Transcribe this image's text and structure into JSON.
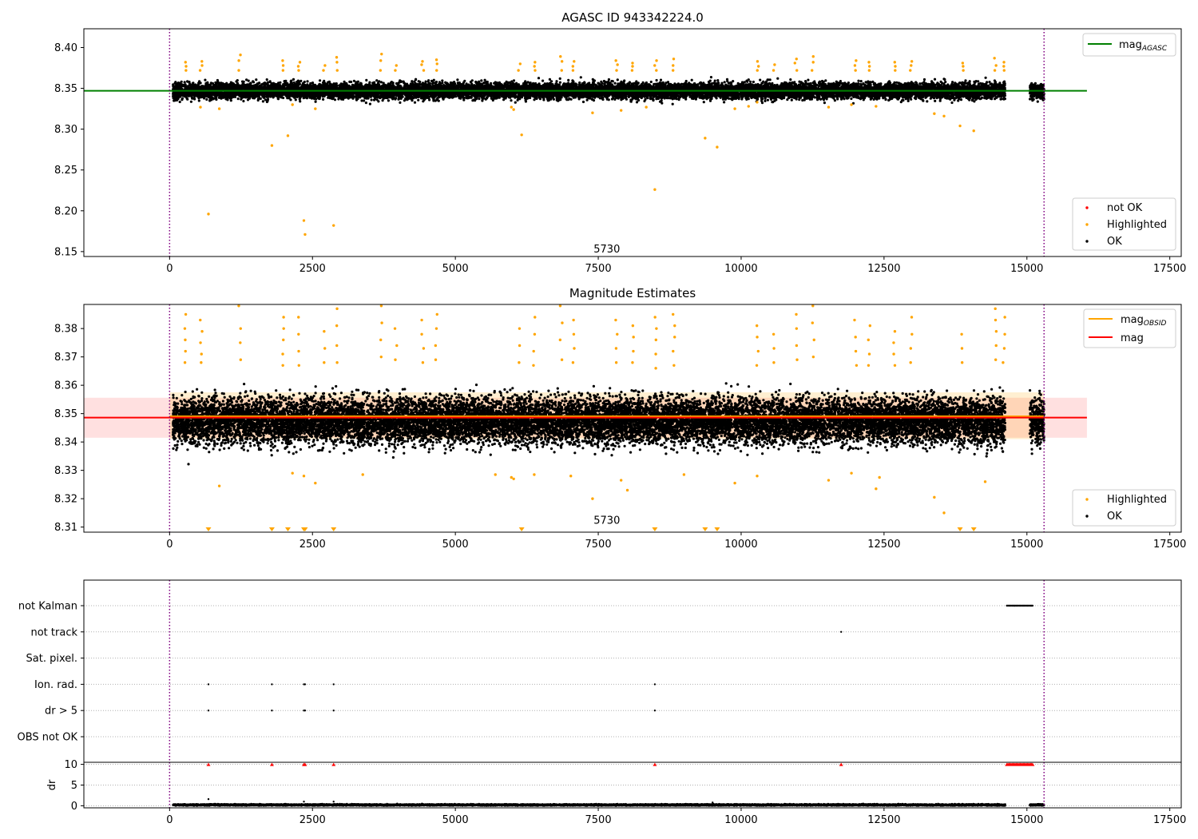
{
  "chart_data": [
    {
      "type": "scatter",
      "title": "AGASC ID 943342224.0",
      "xlim": [
        -1500,
        17700
      ],
      "ylim": [
        8.144,
        8.423
      ],
      "xticks": [
        0,
        2500,
        5000,
        7500,
        10000,
        12500,
        15000,
        17500
      ],
      "yticks": [
        8.15,
        8.2,
        8.25,
        8.3,
        8.35,
        8.4
      ],
      "ytick_labels": [
        "8.15",
        "8.20",
        "8.25",
        "8.30",
        "8.35",
        "8.40"
      ],
      "vlines": [
        0,
        15300
      ],
      "vline_color": "#800080",
      "annotation": {
        "text": "5730",
        "x": 7650,
        "y": 8.151
      },
      "hline": {
        "name": "mag_AGASC",
        "value": 8.347,
        "x_range": [
          -1500,
          16050
        ],
        "color": "#008000"
      },
      "ok_band": {
        "center": 8.347,
        "spread": 0.008
      },
      "ok_segments": [
        [
          60,
          14620
        ],
        [
          15050,
          15300
        ]
      ],
      "highlighted_clusters": [
        {
          "x": 280,
          "values": [
            8.372,
            8.377,
            8.382
          ]
        },
        {
          "x": 550,
          "values": [
            8.372,
            8.378,
            8.383
          ]
        },
        {
          "x": 1230,
          "values": [
            8.372,
            8.384,
            8.391
          ]
        },
        {
          "x": 1980,
          "values": [
            8.372,
            8.378,
            8.384
          ]
        },
        {
          "x": 2260,
          "values": [
            8.372,
            8.377,
            8.382
          ]
        },
        {
          "x": 2700,
          "values": [
            8.372,
            8.378
          ]
        },
        {
          "x": 2940,
          "values": [
            8.372,
            8.382,
            8.388
          ]
        },
        {
          "x": 3700,
          "values": [
            8.372,
            8.384,
            8.392
          ]
        },
        {
          "x": 3960,
          "values": [
            8.372,
            8.378
          ]
        },
        {
          "x": 4430,
          "values": [
            8.372,
            8.379,
            8.383
          ]
        },
        {
          "x": 4670,
          "values": [
            8.372,
            8.38,
            8.385
          ]
        },
        {
          "x": 6120,
          "values": [
            8.372,
            8.38
          ]
        },
        {
          "x": 6380,
          "values": [
            8.372,
            8.377,
            8.382
          ]
        },
        {
          "x": 6850,
          "values": [
            8.372,
            8.383,
            8.389
          ]
        },
        {
          "x": 7070,
          "values": [
            8.372,
            8.377,
            8.383
          ]
        },
        {
          "x": 7820,
          "values": [
            8.372,
            8.379,
            8.384
          ]
        },
        {
          "x": 8100,
          "values": [
            8.372,
            8.377,
            8.381
          ]
        },
        {
          "x": 8500,
          "values": [
            8.372,
            8.378,
            8.384
          ]
        },
        {
          "x": 8820,
          "values": [
            8.372,
            8.378,
            8.386
          ]
        },
        {
          "x": 10290,
          "values": [
            8.372,
            8.377,
            8.383
          ]
        },
        {
          "x": 10580,
          "values": [
            8.372,
            8.379
          ]
        },
        {
          "x": 10960,
          "values": [
            8.372,
            8.381,
            8.386
          ]
        },
        {
          "x": 11260,
          "values": [
            8.372,
            8.382,
            8.389
          ]
        },
        {
          "x": 12000,
          "values": [
            8.372,
            8.378,
            8.384
          ]
        },
        {
          "x": 12240,
          "values": [
            8.372,
            8.377,
            8.382
          ]
        },
        {
          "x": 12680,
          "values": [
            8.372,
            8.377,
            8.382
          ]
        },
        {
          "x": 12970,
          "values": [
            8.372,
            8.378,
            8.383
          ]
        },
        {
          "x": 13870,
          "values": [
            8.372,
            8.377,
            8.381
          ]
        },
        {
          "x": 14450,
          "values": [
            8.372,
            8.378,
            8.387
          ]
        },
        {
          "x": 14600,
          "values": [
            8.372,
            8.377,
            8.382
          ]
        }
      ],
      "highlighted_low": [
        [
          680,
          8.196
        ],
        [
          1790,
          8.28
        ],
        [
          2070,
          8.292
        ],
        [
          2350,
          8.188
        ],
        [
          2370,
          8.171
        ],
        [
          2870,
          8.182
        ],
        [
          6160,
          8.293
        ],
        [
          8490,
          8.226
        ],
        [
          9370,
          8.289
        ],
        [
          9580,
          8.278
        ],
        [
          13830,
          8.304
        ],
        [
          14070,
          8.298
        ],
        [
          13380,
          8.319
        ],
        [
          13550,
          8.316
        ],
        [
          7400,
          8.32
        ],
        [
          540,
          8.327
        ],
        [
          870,
          8.325
        ],
        [
          2150,
          8.33
        ],
        [
          2550,
          8.325
        ],
        [
          5980,
          8.327
        ],
        [
          6020,
          8.324
        ],
        [
          7900,
          8.323
        ],
        [
          9890,
          8.325
        ],
        [
          10130,
          8.328
        ],
        [
          10280,
          8.333
        ],
        [
          11530,
          8.327
        ],
        [
          11930,
          8.33
        ],
        [
          12360,
          8.328
        ],
        [
          8340,
          8.327
        ]
      ],
      "legend_markers": [
        {
          "label": "not OK",
          "color": "#ff0000"
        },
        {
          "label": "Highlighted",
          "color": "#ffa500"
        },
        {
          "label": "OK",
          "color": "#000000"
        }
      ],
      "legend_lines": [
        {
          "label": "mag",
          "sub": "AGASC",
          "color": "#008000"
        }
      ]
    },
    {
      "type": "scatter",
      "title": "Magnitude Estimates",
      "xlim": [
        -1500,
        17700
      ],
      "ylim": [
        8.3082,
        8.3885
      ],
      "xticks": [
        0,
        2500,
        5000,
        7500,
        10000,
        12500,
        15000,
        17500
      ],
      "yticks": [
        8.31,
        8.32,
        8.33,
        8.34,
        8.35,
        8.36,
        8.37,
        8.38
      ],
      "ytick_labels": [
        "8.31",
        "8.32",
        "8.33",
        "8.34",
        "8.35",
        "8.36",
        "8.37",
        "8.38"
      ],
      "vlines": [
        0,
        15300
      ],
      "vline_color": "#800080",
      "annotation": {
        "text": "5730",
        "x": 7650,
        "y": 8.3106
      },
      "mag": {
        "value": 8.3486,
        "band": [
          8.3415,
          8.3556
        ],
        "x_range": [
          -1500,
          16050
        ],
        "color": "#ff0000"
      },
      "mag_obsid": {
        "value": 8.349,
        "band": [
          8.341,
          8.3575
        ],
        "x_range": [
          0,
          15300
        ],
        "color": "#ffa500"
      },
      "ok_band": {
        "center": 8.3475,
        "spread": 0.0068
      },
      "ok_segments": [
        [
          60,
          14620
        ],
        [
          15050,
          15300
        ]
      ],
      "highlighted_clusters": [
        {
          "x": 280,
          "values": [
            8.368,
            8.372,
            8.376,
            8.38,
            8.385
          ]
        },
        {
          "x": 550,
          "values": [
            8.368,
            8.371,
            8.375,
            8.379,
            8.383
          ]
        },
        {
          "x": 1230,
          "values": [
            8.369,
            8.375,
            8.38,
            8.388
          ]
        },
        {
          "x": 1980,
          "values": [
            8.367,
            8.371,
            8.376,
            8.38,
            8.384
          ]
        },
        {
          "x": 2260,
          "values": [
            8.367,
            8.372,
            8.378,
            8.384
          ]
        },
        {
          "x": 2700,
          "values": [
            8.368,
            8.373,
            8.379
          ]
        },
        {
          "x": 2940,
          "values": [
            8.368,
            8.374,
            8.381,
            8.387
          ]
        },
        {
          "x": 3700,
          "values": [
            8.37,
            8.376,
            8.382,
            8.388
          ]
        },
        {
          "x": 3960,
          "values": [
            8.369,
            8.374,
            8.38
          ]
        },
        {
          "x": 4430,
          "values": [
            8.368,
            8.373,
            8.378,
            8.383
          ]
        },
        {
          "x": 4670,
          "values": [
            8.369,
            8.374,
            8.38,
            8.385
          ]
        },
        {
          "x": 6120,
          "values": [
            8.368,
            8.374,
            8.38
          ]
        },
        {
          "x": 6380,
          "values": [
            8.367,
            8.372,
            8.378,
            8.384
          ]
        },
        {
          "x": 6850,
          "values": [
            8.369,
            8.376,
            8.382,
            8.388
          ]
        },
        {
          "x": 7070,
          "values": [
            8.368,
            8.373,
            8.378,
            8.383
          ]
        },
        {
          "x": 7820,
          "values": [
            8.368,
            8.373,
            8.378,
            8.383
          ]
        },
        {
          "x": 8100,
          "values": [
            8.368,
            8.372,
            8.377,
            8.381
          ]
        },
        {
          "x": 8500,
          "values": [
            8.366,
            8.371,
            8.376,
            8.38,
            8.384
          ]
        },
        {
          "x": 8820,
          "values": [
            8.367,
            8.372,
            8.377,
            8.381,
            8.385
          ]
        },
        {
          "x": 10290,
          "values": [
            8.367,
            8.372,
            8.377,
            8.381
          ]
        },
        {
          "x": 10580,
          "values": [
            8.368,
            8.373,
            8.378
          ]
        },
        {
          "x": 10960,
          "values": [
            8.369,
            8.374,
            8.38,
            8.385
          ]
        },
        {
          "x": 11260,
          "values": [
            8.37,
            8.376,
            8.382,
            8.388
          ]
        },
        {
          "x": 12000,
          "values": [
            8.367,
            8.372,
            8.377,
            8.383
          ]
        },
        {
          "x": 12240,
          "values": [
            8.367,
            8.371,
            8.376,
            8.381
          ]
        },
        {
          "x": 12680,
          "values": [
            8.367,
            8.371,
            8.375,
            8.379
          ]
        },
        {
          "x": 12970,
          "values": [
            8.368,
            8.373,
            8.378,
            8.384
          ]
        },
        {
          "x": 13870,
          "values": [
            8.368,
            8.373,
            8.378
          ]
        },
        {
          "x": 14450,
          "values": [
            8.369,
            8.374,
            8.379,
            8.383,
            8.387
          ]
        },
        {
          "x": 14600,
          "values": [
            8.368,
            8.373,
            8.378,
            8.384
          ]
        }
      ],
      "highlighted_low": [
        [
          870,
          8.3245
        ],
        [
          2150,
          8.329
        ],
        [
          2550,
          8.3255
        ],
        [
          2350,
          8.328
        ],
        [
          5700,
          8.3285
        ],
        [
          5980,
          8.3275
        ],
        [
          6020,
          8.327
        ],
        [
          6380,
          8.3285
        ],
        [
          7400,
          8.32
        ],
        [
          7900,
          8.3265
        ],
        [
          8010,
          8.323
        ],
        [
          7020,
          8.328
        ],
        [
          9890,
          8.3255
        ],
        [
          10280,
          8.328
        ],
        [
          11530,
          8.3265
        ],
        [
          11930,
          8.329
        ],
        [
          12360,
          8.3235
        ],
        [
          12420,
          8.3275
        ],
        [
          13380,
          8.3205
        ],
        [
          13550,
          8.315
        ],
        [
          14270,
          8.326
        ],
        [
          9000,
          8.3285
        ],
        [
          3380,
          8.3285
        ]
      ],
      "below_axis_markers": [
        680,
        1790,
        2070,
        2350,
        2370,
        2870,
        6160,
        8490,
        9370,
        9580,
        13830,
        14070
      ],
      "legend_markers": [
        {
          "label": "Highlighted",
          "color": "#ffa500"
        },
        {
          "label": "OK",
          "color": "#000000"
        }
      ],
      "legend_lines": [
        {
          "label": "mag",
          "sub": "OBSID",
          "color": "#ffa500"
        },
        {
          "label": "mag",
          "sub": "",
          "color": "#ff0000"
        }
      ]
    },
    {
      "type": "scatter",
      "title": "",
      "xlim": [
        -1500,
        17700
      ],
      "categories": [
        "not Kalman",
        "not track",
        "Sat. pixel.",
        "Ion. rad.",
        "dr > 5",
        "OBS not OK"
      ],
      "flags": {
        "not Kalman": {
          "range": [
            14650,
            15100
          ]
        },
        "not track": {
          "points": [
            11750
          ]
        },
        "Sat. pixel.": {
          "points": []
        },
        "Ion. rad.": {
          "points": [
            680,
            1790,
            2350,
            2370,
            2870,
            8490
          ]
        },
        "dr > 5": {
          "points": [
            680,
            1790,
            2350,
            2370,
            2870,
            8490
          ]
        },
        "OBS not OK": {
          "points": []
        }
      },
      "vlines": [
        0,
        15300
      ],
      "vline_color": "#800080"
    },
    {
      "type": "scatter",
      "title": "",
      "ylabel": "dr",
      "xlim": [
        -1500,
        17700
      ],
      "ylim": [
        -0.5,
        10.5
      ],
      "xticks": [
        0,
        2500,
        5000,
        7500,
        10000,
        12500,
        15000,
        17500
      ],
      "xtick_labels": [
        "0",
        "2500",
        "5000",
        "7500",
        "10000",
        "12500",
        "15000",
        "17500"
      ],
      "yticks": [
        0,
        5,
        10
      ],
      "ytick_labels": [
        "0",
        "5",
        "10"
      ],
      "vlines": [
        0,
        15300
      ],
      "vline_color": "#800080",
      "ok_segments": [
        [
          60,
          14620
        ],
        [
          15050,
          15300
        ]
      ],
      "ok_band": {
        "center": 0.2,
        "spread": 0.15
      },
      "outliers": [
        [
          680,
          1.6
        ],
        [
          2350,
          1.0
        ],
        [
          2870,
          1.0
        ],
        [
          9500,
          0.8
        ]
      ],
      "capped_markers": [
        680,
        1790,
        2350,
        2370,
        2870,
        8490,
        11750
      ],
      "capped_range": [
        14650,
        15100
      ],
      "capped_color": "#ff0000"
    }
  ]
}
